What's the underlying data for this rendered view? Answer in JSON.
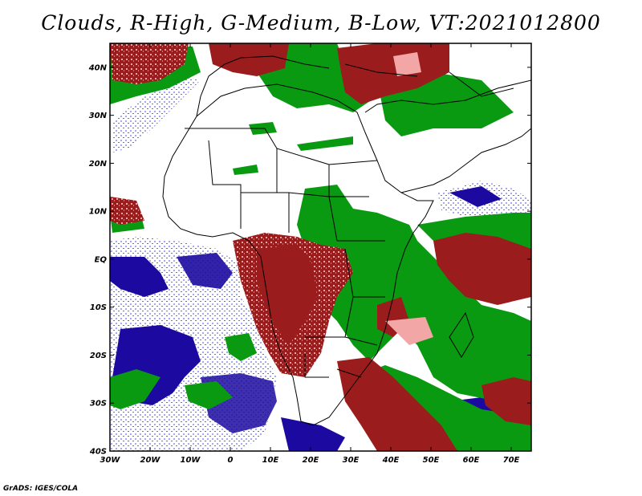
{
  "title": "Clouds, R-High, G-Medium, B-Low, VT:2021012800",
  "credit": "GrADS: IGES/COLA",
  "legend_colors": {
    "high": "#9b1c1c",
    "high_light": "#f2a6a6",
    "medium": "#0a9a12",
    "low": "#1c0aa0",
    "low_light": "#a8a8ee"
  },
  "lat_labels": [
    "40N",
    "30N",
    "20N",
    "10N",
    "EQ",
    "10S",
    "20S",
    "30S",
    "40S"
  ],
  "lon_labels": [
    "30W",
    "20W",
    "10W",
    "0",
    "10E",
    "20E",
    "30E",
    "40E",
    "50E",
    "60E",
    "70E"
  ]
}
